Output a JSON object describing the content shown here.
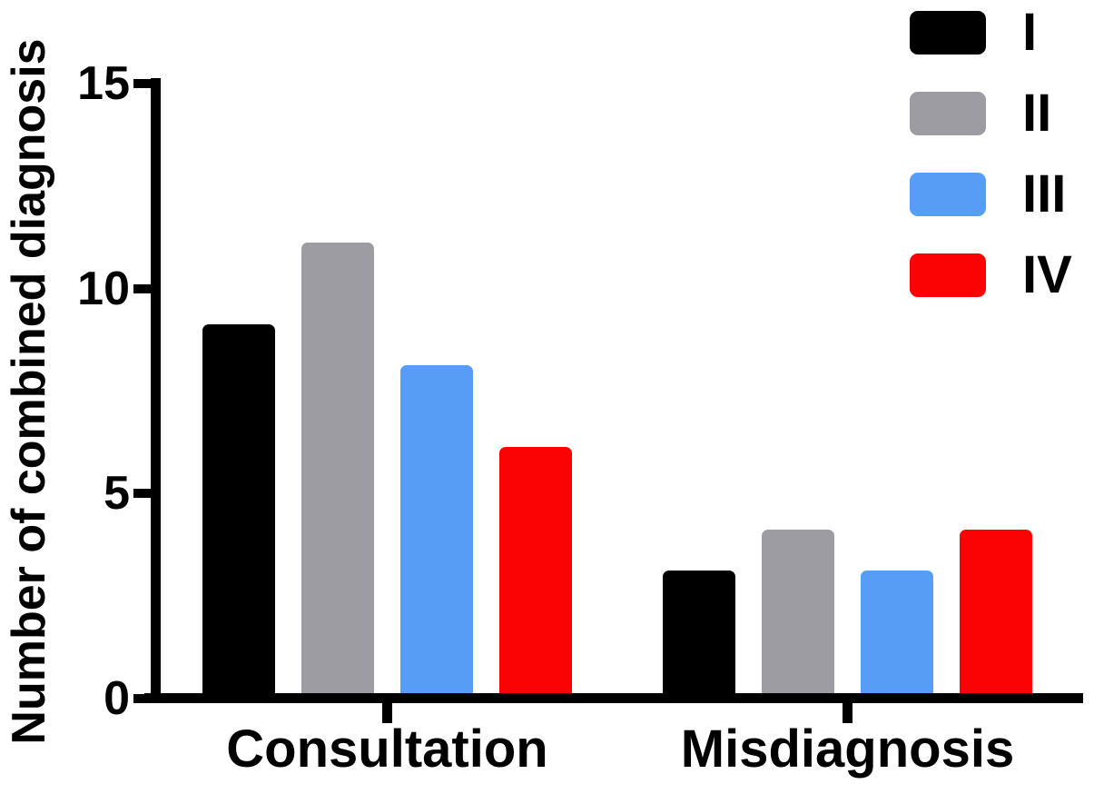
{
  "chart_data": {
    "type": "bar",
    "title": "",
    "xlabel": "",
    "ylabel": "Number of combined diagnosis",
    "categories": [
      "Consultation",
      "Misdiagnosis"
    ],
    "series": [
      {
        "name": "I",
        "color": "#000000",
        "values": [
          9,
          3
        ]
      },
      {
        "name": "II",
        "color": "#9D9CA2",
        "values": [
          11,
          4
        ]
      },
      {
        "name": "III",
        "color": "#579CF5",
        "values": [
          8,
          3
        ]
      },
      {
        "name": "IV",
        "color": "#FB0204",
        "values": [
          6,
          4
        ]
      }
    ],
    "ylim": [
      0,
      15
    ],
    "yticks": [
      0,
      5,
      10,
      15
    ],
    "grid": false,
    "legend_position": "top-right",
    "axis_color": "#000000"
  }
}
